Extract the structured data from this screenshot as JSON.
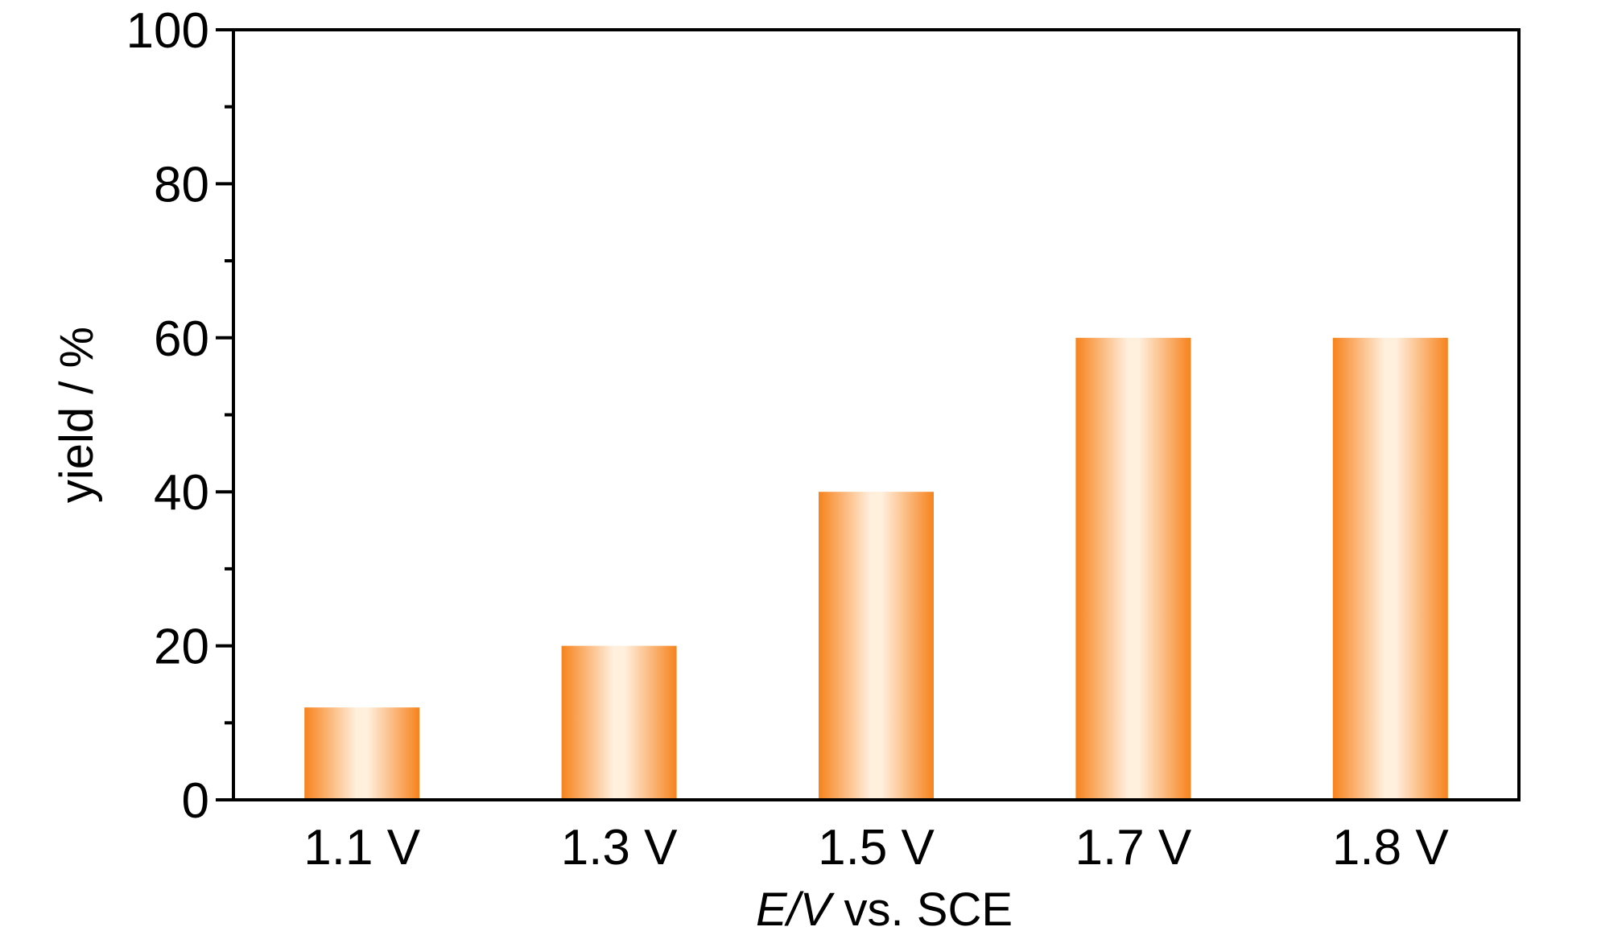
{
  "chart_data": {
    "type": "bar",
    "title": "",
    "categories": [
      "1.1 V",
      "1.3 V",
      "1.5 V",
      "1.7 V",
      "1.8 V"
    ],
    "values": [
      12,
      20,
      40,
      60,
      60
    ],
    "xlabel": {
      "italic_part": "E/V",
      "rest": " vs. SCE"
    },
    "ylabel": "yield / %",
    "ylim": [
      0,
      100
    ],
    "yticks": [
      0,
      20,
      40,
      60,
      80,
      100
    ],
    "yminor_step": 10,
    "grid": false,
    "legend": "none",
    "bar_colors": {
      "edge": "#f6831c",
      "center": "#ffefdc"
    },
    "axis_color": "#000000"
  }
}
